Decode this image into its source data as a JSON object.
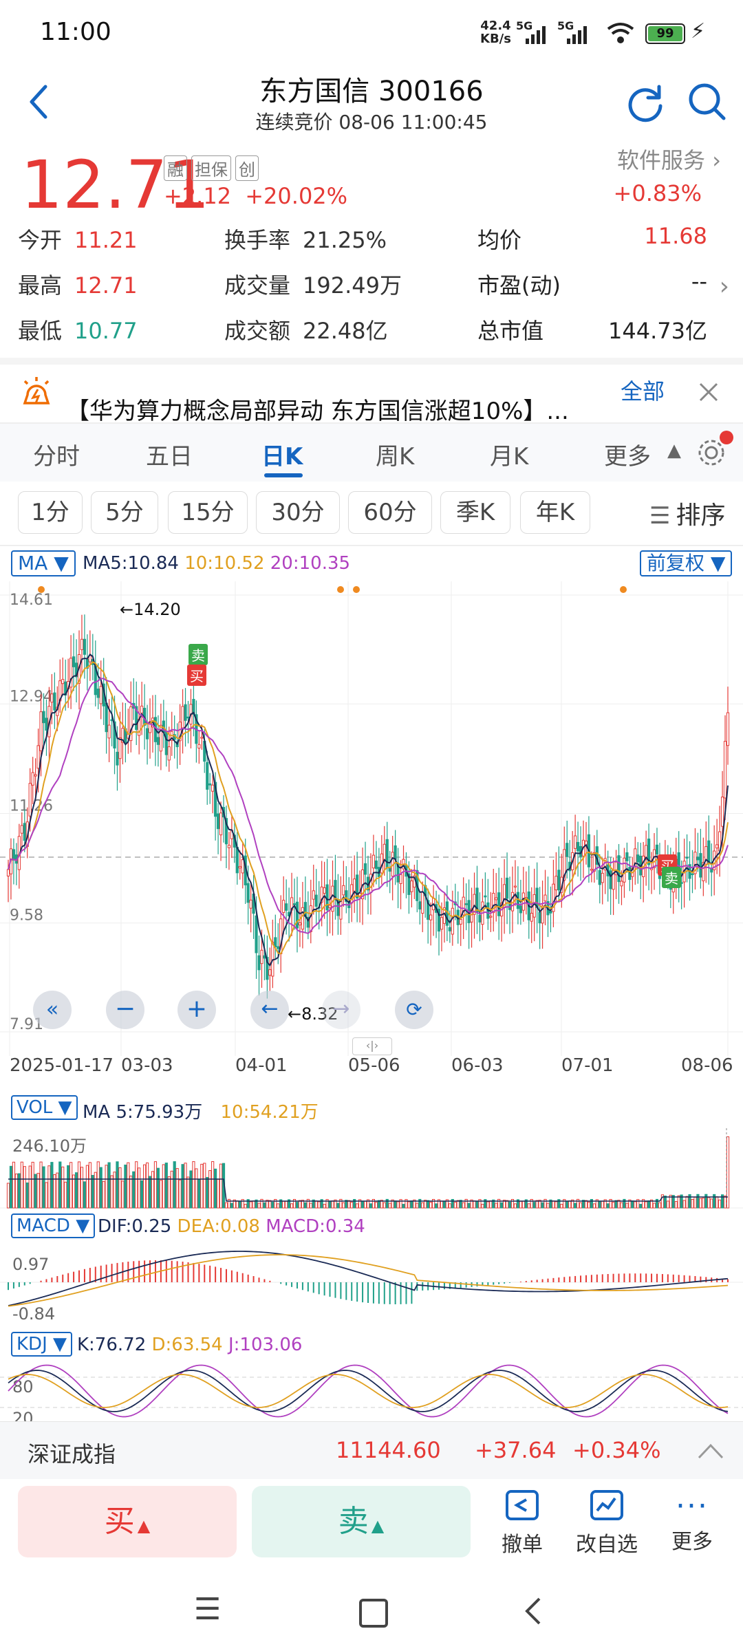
{
  "status_bar": {
    "time": "11:00",
    "net_speed": "42.4",
    "net_unit": "KB/s",
    "sim1": "5G",
    "sim2": "5G",
    "battery": "99"
  },
  "header": {
    "title": "东方国信 300166",
    "subtitle": "连续竞价 08-06 11:00:45"
  },
  "quote": {
    "price": "12.71",
    "change": "+2.12",
    "change_pct": "+20.02%",
    "tags": [
      "融",
      "担保",
      "创"
    ],
    "sector": "软件服务",
    "sector_change": "+0.83%"
  },
  "stats": [
    {
      "label": "今开",
      "value": "11.21"
    },
    {
      "label": "换手率",
      "value": "21.25%"
    },
    {
      "label": "均价",
      "value": "11.68"
    },
    {
      "label": "最高",
      "value": "12.71"
    },
    {
      "label": "成交量",
      "value": "192.49万"
    },
    {
      "label": "市盈(动)",
      "value": "--"
    },
    {
      "label": "最低",
      "value": "10.77"
    },
    {
      "label": "成交额",
      "value": "22.48亿"
    },
    {
      "label": "总市值",
      "value": "144.73亿"
    }
  ],
  "news": {
    "text": "【华为算力概念局部异动 东方国信涨超10%】...",
    "all_label": "全部"
  },
  "tabs": [
    "分时",
    "五日",
    "日K",
    "周K",
    "月K",
    "更多"
  ],
  "active_tab": 2,
  "periods": [
    "1分",
    "5分",
    "15分",
    "30分",
    "60分",
    "季K",
    "年K"
  ],
  "sort_label": "排序",
  "ma": {
    "label": "MA",
    "ma5": "MA5:10.84",
    "ma10": "10:10.52",
    "ma20": "20:10.35",
    "adjust": "前复权"
  },
  "chart_data": {
    "type": "candlestick",
    "y_ticks": [
      "14.61",
      "12.94",
      "11.26",
      "9.58",
      "7.91"
    ],
    "ylim": [
      7.91,
      14.61
    ],
    "x_ticks": [
      "2025-01-17",
      "03-03",
      "04-01",
      "05-06",
      "06-03",
      "07-01",
      "08-06"
    ],
    "annotations": {
      "high": "←14.20",
      "low": "←8.32"
    },
    "signals": [
      "卖",
      "买",
      "买",
      "卖"
    ],
    "prev_close": 10.59,
    "last_close": 12.71
  },
  "chart_controls": [
    "fast-rewind",
    "zoom-out",
    "zoom-in",
    "scroll-left",
    "scroll-right",
    "rotate"
  ],
  "vol": {
    "label": "VOL",
    "ma5": "MA 5:75.93万",
    "ma10": "10:54.21万",
    "max": "246.10万"
  },
  "macd": {
    "label": "MACD",
    "dif": "DIF:0.25",
    "dea": "DEA:0.08",
    "macd": "MACD:0.34",
    "top": "0.97",
    "bottom": "-0.84"
  },
  "kdj": {
    "label": "KDJ",
    "k": "K:76.72",
    "d": "D:63.54",
    "j": "J:103.06",
    "top": "80",
    "bottom": "20"
  },
  "index_bar": {
    "name": "深证成指",
    "value": "11144.60",
    "change": "+37.64",
    "change_pct": "+0.34%"
  },
  "actions": {
    "buy": "买",
    "sell": "卖",
    "cancel": "撤单",
    "edit_watch": "改自选",
    "more": "更多"
  },
  "colors": {
    "up": "#e53935",
    "down": "#20a08a",
    "accent": "#1565c0",
    "ma5": "#1a2a55",
    "ma10": "#e0a020",
    "ma20": "#b040c0"
  }
}
